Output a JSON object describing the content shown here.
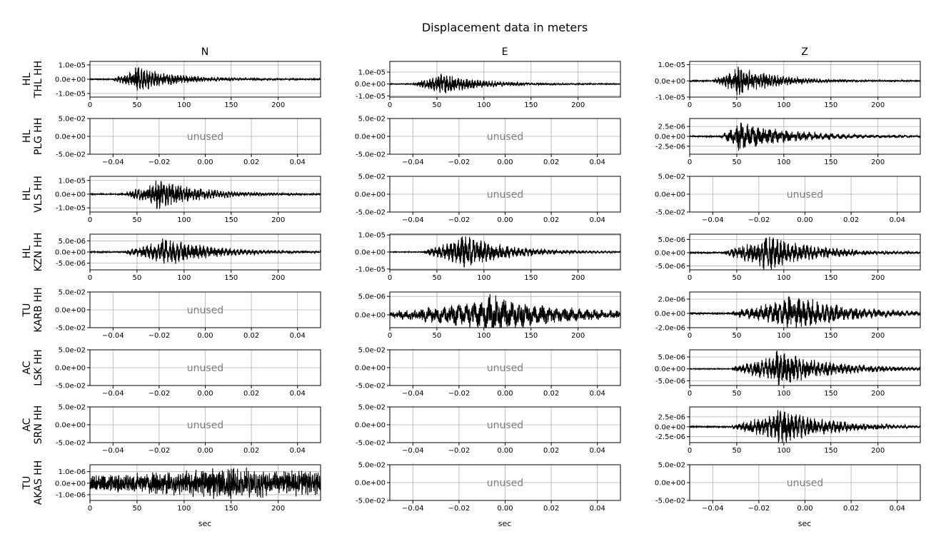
{
  "title": "Displacement data in meters",
  "columns": [
    "N",
    "E",
    "Z"
  ],
  "xlabel": "sec",
  "unused_label": "unused",
  "colors": {
    "trace": "#000000",
    "grid": "#b0b0b0",
    "unused_text": "#808080"
  },
  "rows": [
    {
      "label_top": "HL",
      "label_bottom": "THL HH"
    },
    {
      "label_top": "HL",
      "label_bottom": "PLG HH"
    },
    {
      "label_top": "HL",
      "label_bottom": "VLS HH"
    },
    {
      "label_top": "HL",
      "label_bottom": "KZN HH"
    },
    {
      "label_top": "TU",
      "label_bottom": "KARB HH"
    },
    {
      "label_top": "AC",
      "label_bottom": "LSK HH"
    },
    {
      "label_top": "AC",
      "label_bottom": "SRN HH"
    },
    {
      "label_top": "TU",
      "label_bottom": "AKAS HH"
    }
  ],
  "chart_data": {
    "type": "line",
    "title": "Displacement data in meters",
    "grid": true,
    "unused_axis": {
      "xlim": [
        -0.05,
        0.05
      ],
      "x_ticks": [
        -0.04,
        -0.02,
        0.0,
        0.02,
        0.04
      ],
      "x_tick_labels": [
        "−0.04",
        "−0.02",
        "0.00",
        "0.02",
        "0.04"
      ],
      "ylim": [
        -0.05,
        0.05
      ],
      "y_ticks": [
        -0.05,
        0.0,
        0.05
      ],
      "y_tick_labels": [
        "-5.0e-02",
        "0.0e+00",
        "5.0e-02"
      ]
    },
    "used_xlim": [
      0,
      245
    ],
    "used_x_ticks": [
      0,
      50,
      100,
      150,
      200
    ],
    "used_x_tick_labels": [
      "0",
      "50",
      "100",
      "150",
      "200"
    ],
    "panels": [
      {
        "row": 0,
        "col": 0,
        "used": true,
        "onset": 25,
        "peak": 48,
        "decay": 45,
        "amp": 1e-05,
        "noise": 3e-07,
        "period": 3.0,
        "ylim": [
          -1.25e-05,
          1.25e-05
        ],
        "y_ticks": [
          -1e-05,
          0,
          1e-05
        ],
        "y_tick_labels": [
          "-1.0e-05",
          "0.0e+00",
          "1.0e-05"
        ]
      },
      {
        "row": 0,
        "col": 1,
        "used": true,
        "onset": 25,
        "peak": 50,
        "decay": 45,
        "amp": 1e-05,
        "noise": 3e-07,
        "period": 3.0,
        "ylim": [
          -1.1e-05,
          1.9e-05
        ],
        "y_ticks": [
          -1e-05,
          0,
          1e-05
        ],
        "y_tick_labels": [
          "-1.0e-05",
          "0.0e+00",
          "1.0e-05"
        ]
      },
      {
        "row": 0,
        "col": 2,
        "used": true,
        "onset": 25,
        "peak": 48,
        "decay": 45,
        "amp": 1e-05,
        "noise": 3e-07,
        "period": 3.0,
        "ylim": [
          -1e-05,
          1.2e-05
        ],
        "y_ticks": [
          -1e-05,
          0,
          1e-05
        ],
        "y_tick_labels": [
          "-1.0e-05",
          "0.0e+00",
          "1.0e-05"
        ]
      },
      {
        "row": 1,
        "col": 0,
        "used": false
      },
      {
        "row": 1,
        "col": 1,
        "used": false
      },
      {
        "row": 1,
        "col": 2,
        "used": true,
        "onset": 33,
        "peak": 50,
        "decay": 60,
        "amp": 4e-06,
        "noise": 1.5e-07,
        "period": 6.0,
        "ylim": [
          -4.5e-06,
          4.5e-06
        ],
        "y_ticks": [
          -2.5e-06,
          0,
          2.5e-06
        ],
        "y_tick_labels": [
          "-2.5e-06",
          "0.0e+00",
          "2.5e-06"
        ]
      },
      {
        "row": 2,
        "col": 0,
        "used": true,
        "onset": 37,
        "peak": 70,
        "decay": 50,
        "amp": 1.2e-05,
        "noise": 3e-07,
        "period": 3.0,
        "ylim": [
          -1.3e-05,
          1.3e-05
        ],
        "y_ticks": [
          -1e-05,
          0,
          1e-05
        ],
        "y_tick_labels": [
          "-1.0e-05",
          "0.0e+00",
          "1.0e-05"
        ]
      },
      {
        "row": 2,
        "col": 1,
        "used": false
      },
      {
        "row": 2,
        "col": 2,
        "used": false
      },
      {
        "row": 3,
        "col": 0,
        "used": true,
        "onset": 37,
        "peak": 75,
        "decay": 55,
        "amp": 7e-06,
        "noise": 2e-07,
        "period": 4.0,
        "ylim": [
          -8e-06,
          8e-06
        ],
        "y_ticks": [
          -5e-06,
          0,
          5e-06
        ],
        "y_tick_labels": [
          "-5.0e-06",
          "0.0e+00",
          "5.0e-06"
        ]
      },
      {
        "row": 3,
        "col": 1,
        "used": true,
        "onset": 37,
        "peak": 75,
        "decay": 50,
        "amp": 1.1e-05,
        "noise": 2e-07,
        "period": 4.0,
        "ylim": [
          -1.05e-05,
          1.05e-05
        ],
        "y_ticks": [
          -1e-05,
          0,
          1e-05
        ],
        "y_tick_labels": [
          "-1.0e-05",
          "0.0e+00",
          "1.0e-05"
        ]
      },
      {
        "row": 3,
        "col": 2,
        "used": true,
        "onset": 37,
        "peak": 78,
        "decay": 50,
        "amp": 8e-06,
        "noise": 2e-07,
        "period": 4.0,
        "ylim": [
          -6.5e-06,
          7e-06
        ],
        "y_ticks": [
          -5e-06,
          0,
          5e-06
        ],
        "y_tick_labels": [
          "-5.0e-06",
          "0.0e+00",
          "5.0e-06"
        ]
      },
      {
        "row": 4,
        "col": 0,
        "used": false
      },
      {
        "row": 4,
        "col": 1,
        "used": true,
        "onset": 0,
        "peak": 105,
        "decay": 70,
        "amp": 6e-06,
        "noise": 5e-07,
        "period": 8.0,
        "ylim": [
          -3.5e-06,
          6.2e-06
        ],
        "y_ticks": [
          0,
          5e-06
        ],
        "y_tick_labels": [
          "0.0e+00",
          "5.0e-06"
        ]
      },
      {
        "row": 4,
        "col": 2,
        "used": true,
        "onset": 45,
        "peak": 105,
        "decay": 60,
        "amp": 3e-06,
        "noise": 1e-07,
        "period": 5.0,
        "ylim": [
          -2e-06,
          3e-06
        ],
        "y_ticks": [
          -2e-06,
          0,
          2e-06
        ],
        "y_tick_labels": [
          "-2.0e-06",
          "0.0e+00",
          "2.0e-06"
        ]
      },
      {
        "row": 5,
        "col": 0,
        "used": false
      },
      {
        "row": 5,
        "col": 1,
        "used": false
      },
      {
        "row": 5,
        "col": 2,
        "used": true,
        "onset": 45,
        "peak": 92,
        "decay": 60,
        "amp": 8e-06,
        "noise": 1.5e-07,
        "period": 4.0,
        "ylim": [
          -7e-06,
          8e-06
        ],
        "y_ticks": [
          -5e-06,
          0,
          5e-06
        ],
        "y_tick_labels": [
          "-5.0e-06",
          "0.0e+00",
          "5.0e-06"
        ]
      },
      {
        "row": 6,
        "col": 0,
        "used": false
      },
      {
        "row": 6,
        "col": 1,
        "used": false
      },
      {
        "row": 6,
        "col": 2,
        "used": true,
        "onset": 45,
        "peak": 92,
        "decay": 55,
        "amp": 5e-06,
        "noise": 1.5e-07,
        "period": 4.0,
        "ylim": [
          -4e-06,
          5e-06
        ],
        "y_ticks": [
          -2.5e-06,
          0,
          2.5e-06
        ],
        "y_tick_labels": [
          "-2.5e-06",
          "0.0e+00",
          "2.5e-06"
        ]
      },
      {
        "row": 7,
        "col": 0,
        "used": true,
        "onset": 0,
        "peak": 130,
        "decay": 200,
        "amp": 1.2e-06,
        "noise": 6e-07,
        "period": 2.0,
        "ylim": [
          -1.5e-06,
          1.6e-06
        ],
        "y_ticks": [
          -1e-06,
          0,
          1e-06
        ],
        "y_tick_labels": [
          "-1.0e-06",
          "0.0e+00",
          "1.0e-06"
        ]
      },
      {
        "row": 7,
        "col": 1,
        "used": false
      },
      {
        "row": 7,
        "col": 2,
        "used": false
      }
    ]
  }
}
